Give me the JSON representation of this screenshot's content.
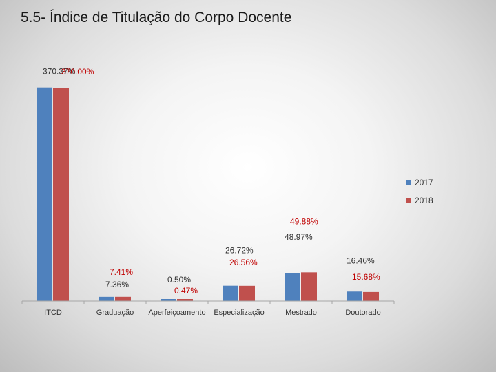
{
  "slide": {
    "title": "5.5- Índice de Titulação do Corpo Docente"
  },
  "chart_data": {
    "type": "bar",
    "categories": [
      "ITCD",
      "Graduação",
      "Aperfeiçoamento",
      "Especialização",
      "Mestrado",
      "Doutorado"
    ],
    "series": [
      {
        "name": "2017",
        "color": "#4f81bd",
        "values": [
          370.37,
          7.36,
          0.5,
          26.72,
          48.97,
          16.46
        ],
        "labels": [
          "370.37%",
          "7.36%",
          "0.50%",
          "26.72%",
          "48.97%",
          "16.46%"
        ]
      },
      {
        "name": "2018",
        "color": "#c0504d",
        "values": [
          370.0,
          7.41,
          0.47,
          26.56,
          49.88,
          15.68
        ],
        "labels": [
          "370.00%",
          "7.41%",
          "0.47%",
          "26.56%",
          "49.88%",
          "15.68%"
        ]
      }
    ],
    "label_colors": [
      "#333333",
      "#c00000"
    ],
    "legend_position": "right",
    "grid": false
  }
}
